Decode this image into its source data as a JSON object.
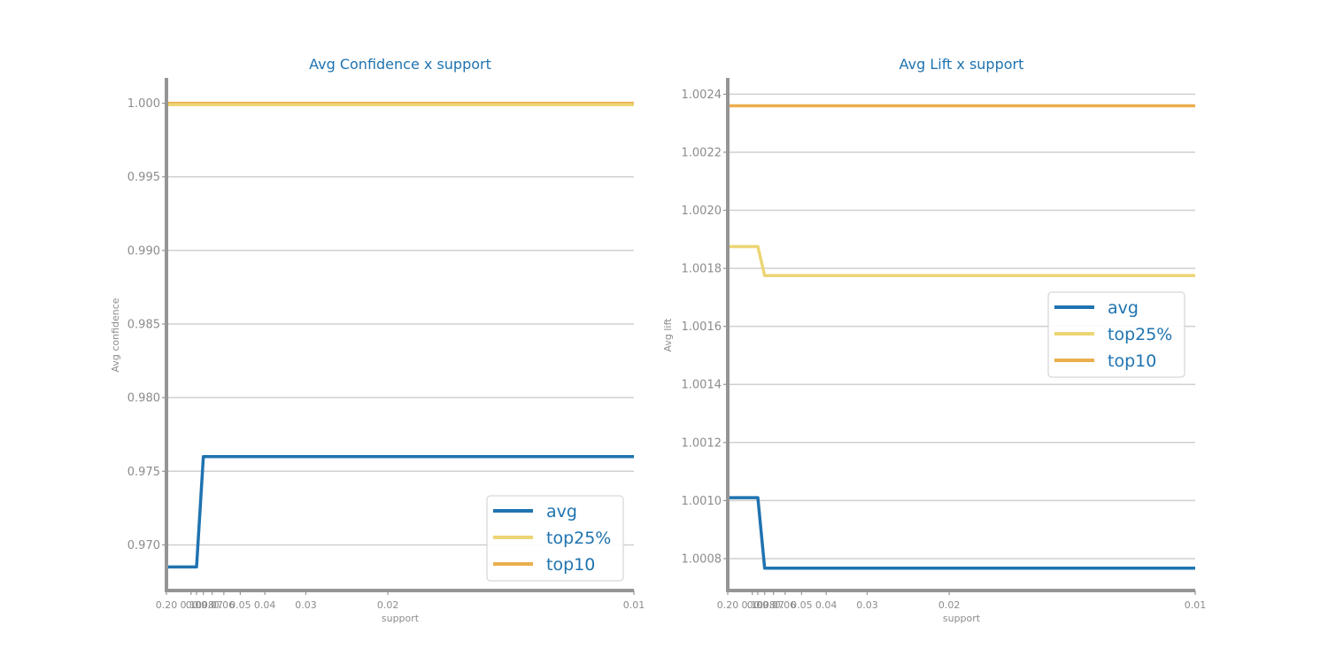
{
  "chart_data": [
    {
      "type": "line",
      "title": "Avg Confidence x support",
      "xlabel": "support",
      "ylabel": "Avg confidence",
      "x": [
        0.2,
        0.1,
        0.09,
        0.08,
        0.07,
        0.06,
        0.05,
        0.04,
        0.03,
        0.02,
        0.01
      ],
      "x_tick_labels": [
        "0.20",
        "0.10",
        "0.09",
        "0.08",
        "0.07",
        "0.06",
        "0.05",
        "0.04",
        "0.03",
        "0.02",
        "0.01"
      ],
      "y_ticks": [
        0.97,
        0.975,
        0.98,
        0.985,
        0.99,
        0.995,
        1.0
      ],
      "y_tick_labels": [
        "0.970",
        "0.975",
        "0.980",
        "0.985",
        "0.990",
        "0.995",
        "1.000"
      ],
      "ylim": [
        0.9669,
        1.0016
      ],
      "xaxis": "reciprocal",
      "grid": "horizontal",
      "legend_position": "lower-right",
      "series": [
        {
          "name": "avg",
          "color": "#1f73b0",
          "values": [
            0.9685,
            0.9685,
            0.9685,
            0.976,
            0.976,
            0.976,
            0.976,
            0.976,
            0.976,
            0.976,
            0.976
          ]
        },
        {
          "name": "top25%",
          "color": "#ecd574",
          "values": [
            0.9999,
            0.9999,
            0.9999,
            0.9999,
            0.9999,
            0.9999,
            0.9999,
            0.9999,
            0.9999,
            0.9999,
            0.9999
          ]
        },
        {
          "name": "top10",
          "color": "#ebae4f",
          "values": [
            1.0,
            1.0,
            1.0,
            1.0,
            1.0,
            1.0,
            1.0,
            1.0,
            1.0,
            1.0,
            1.0
          ]
        }
      ]
    },
    {
      "type": "line",
      "title": "Avg Lift x support",
      "xlabel": "support",
      "ylabel": "Avg lift",
      "x": [
        0.2,
        0.1,
        0.09,
        0.08,
        0.07,
        0.06,
        0.05,
        0.04,
        0.03,
        0.02,
        0.01
      ],
      "x_tick_labels": [
        "0.20",
        "0.10",
        "0.09",
        "0.08",
        "0.07",
        "0.06",
        "0.05",
        "0.04",
        "0.03",
        "0.02",
        "0.01"
      ],
      "y_ticks": [
        1.0008,
        1.001,
        1.0012,
        1.0014,
        1.0016,
        1.0018,
        1.002,
        1.0022,
        1.0024
      ],
      "y_tick_labels": [
        "1.0008",
        "1.0010",
        "1.0012",
        "1.0014",
        "1.0016",
        "1.0018",
        "1.0020",
        "1.0022",
        "1.0024"
      ],
      "ylim": [
        1.00069,
        1.00245
      ],
      "xaxis": "reciprocal",
      "grid": "horizontal",
      "legend_position": "center-right",
      "series": [
        {
          "name": "avg",
          "color": "#1f73b0",
          "values": [
            1.00101,
            1.00101,
            1.00101,
            1.000767,
            1.000767,
            1.000767,
            1.000767,
            1.000767,
            1.000767,
            1.000767,
            1.000767
          ]
        },
        {
          "name": "top25%",
          "color": "#ecd574",
          "values": [
            1.001875,
            1.001875,
            1.001875,
            1.001775,
            1.001775,
            1.001775,
            1.001775,
            1.001775,
            1.001775,
            1.001775,
            1.001775
          ]
        },
        {
          "name": "top10",
          "color": "#ebae4f",
          "values": [
            1.00236,
            1.00236,
            1.00236,
            1.00236,
            1.00236,
            1.00236,
            1.00236,
            1.00236,
            1.00236,
            1.00236,
            1.00236
          ]
        }
      ]
    }
  ],
  "colors": {
    "axis": "#959595",
    "grid": "#cfcfcf",
    "text_accent": "#1f73b0",
    "tick_text": "#8c8c8c"
  }
}
